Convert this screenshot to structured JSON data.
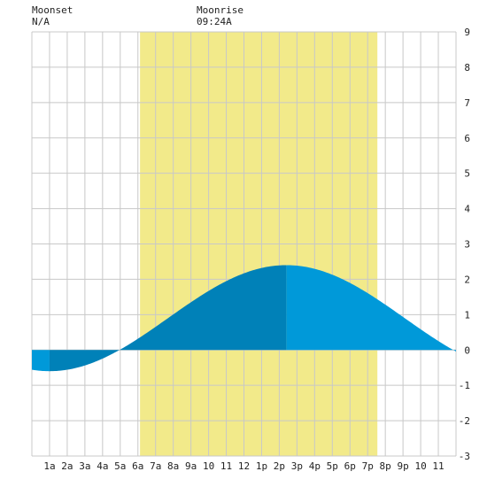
{
  "header": {
    "moonset_label": "Moonset",
    "moonset_time": "N/A",
    "moonrise_label": "Moonrise",
    "moonrise_time": "09:24A"
  },
  "colors": {
    "daylight": "#f2ea8a",
    "grid": "#c8c8c8",
    "tide_dark": "#0081b8",
    "tide_light": "#0099d9",
    "background": "#ffffff"
  },
  "chart_data": {
    "type": "area",
    "title": "",
    "xlabel": "",
    "ylabel": "",
    "xlim": [
      0,
      24
    ],
    "ylim": [
      -3,
      9
    ],
    "grid": true,
    "x_tick_labels": [
      "1a",
      "2a",
      "3a",
      "4a",
      "5a",
      "6a",
      "7a",
      "8a",
      "9a",
      "10",
      "11",
      "12",
      "1p",
      "2p",
      "3p",
      "4p",
      "5p",
      "6p",
      "7p",
      "8p",
      "9p",
      "10",
      "11"
    ],
    "y_ticks": [
      -3,
      -2,
      -1,
      0,
      1,
      2,
      3,
      4,
      5,
      6,
      7,
      8,
      9
    ],
    "daylight_hours": [
      6.12,
      19.55
    ],
    "tide_extremes": [
      {
        "hour": 1.0,
        "height": -0.6,
        "type": "low"
      },
      {
        "hour": 14.4,
        "height": 2.4,
        "type": "high"
      }
    ],
    "series": [
      {
        "x": [
          0,
          1,
          2,
          3,
          4,
          5,
          6,
          7,
          8,
          9,
          10,
          11,
          12,
          13,
          14,
          14.4,
          15,
          16,
          17,
          18,
          19,
          20,
          21,
          22,
          23,
          24
        ],
        "values": [
          -0.58,
          -0.6,
          -0.53,
          -0.38,
          -0.18,
          0.06,
          0.33,
          0.62,
          0.92,
          1.22,
          1.5,
          1.76,
          1.98,
          2.18,
          2.34,
          2.4,
          2.38,
          2.25,
          1.97,
          1.62,
          1.21,
          0.78,
          0.37,
          0.03,
          -0.19,
          -0.3
        ]
      }
    ]
  }
}
